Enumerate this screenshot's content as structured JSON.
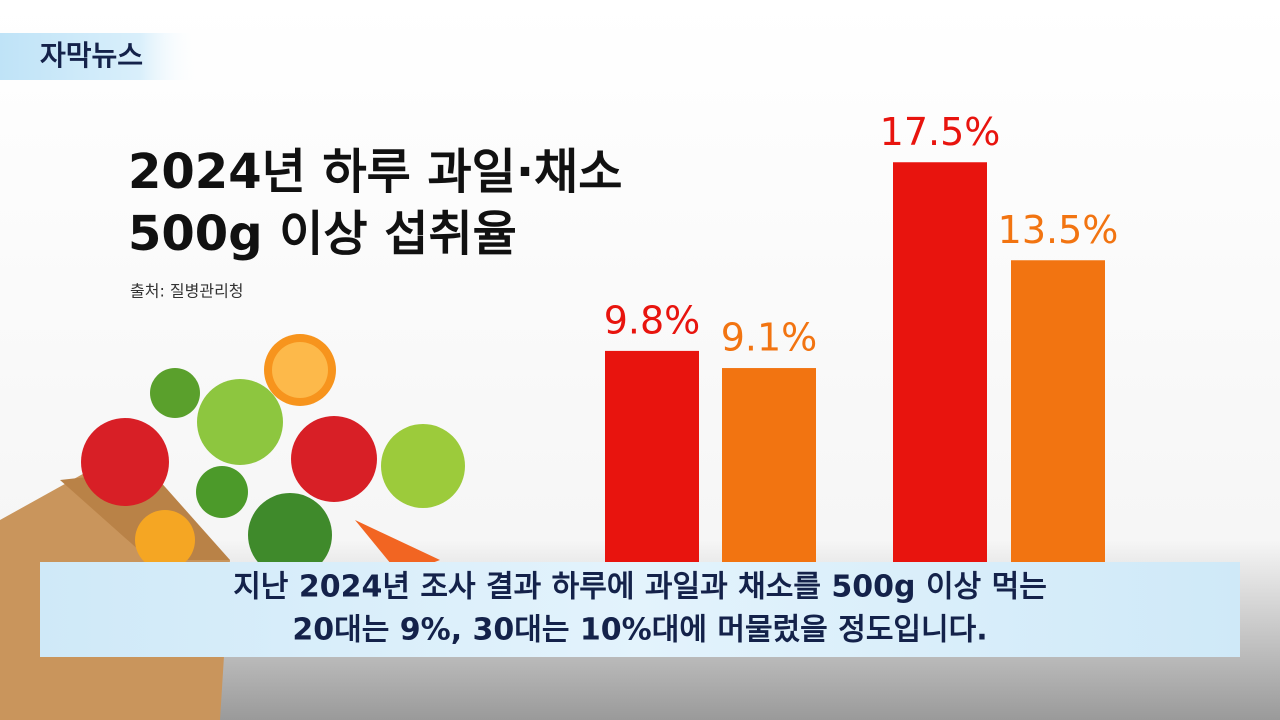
{
  "header": {
    "badge": "자막뉴스"
  },
  "chart_data": {
    "type": "bar",
    "title": [
      "2024년 하루 과일·채소",
      "500g 이상 섭취율"
    ],
    "source": "출처: 질병관리청",
    "categories": [
      null,
      null,
      null,
      null
    ],
    "values": [
      9.8,
      9.1,
      17.5,
      13.5
    ],
    "value_labels": [
      "9.8%",
      "9.1%",
      "17.5%",
      "13.5%"
    ],
    "colors": [
      "#e8140e",
      "#f27411",
      "#e8140e",
      "#f27411"
    ]
  },
  "caption": {
    "lines": [
      "지난 2024년 조사 결과 하루에 과일과 채소를 500g 이상 먹는",
      "20대는 9%, 30대는 10%대에 머물렀을 정도입니다."
    ]
  }
}
